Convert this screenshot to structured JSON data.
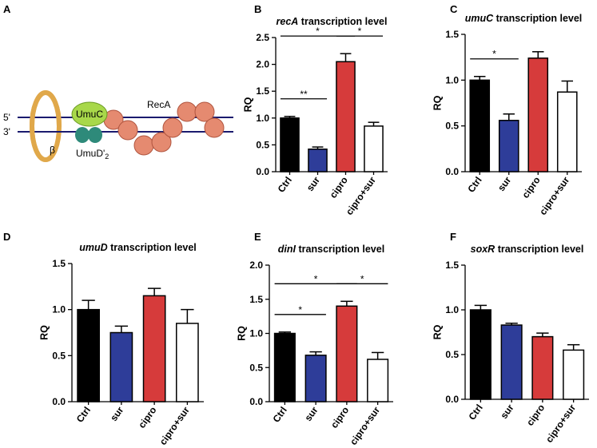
{
  "diagram": {
    "panel_label": "A",
    "strand_5": "5'",
    "strand_3": "3'",
    "umuc": "UmuC",
    "umud": "UmuD'",
    "umud_sub": "2",
    "reca": "RecA",
    "beta": "β"
  },
  "chart_data": [
    {
      "type": "bar",
      "panel_label": "B",
      "title_italic": "recA",
      "title": "transcription level",
      "y_label": "RQ",
      "categories": [
        "Ctrl",
        "sur",
        "cipro",
        "cipro+sur"
      ],
      "values": [
        1.0,
        0.42,
        2.05,
        0.85
      ],
      "errors": [
        0.03,
        0.04,
        0.15,
        0.07
      ],
      "colors": [
        "#000000",
        "#2e3d99",
        "#d63b3b",
        "#ffffff"
      ],
      "ylim": [
        0,
        2.5
      ],
      "yticks": [
        {
          "value": 0,
          "label": "0.0"
        },
        {
          "value": 0.5,
          "label": "0.5"
        },
        {
          "value": 1,
          "label": "1.0"
        },
        {
          "value": 1.5,
          "label": "1.5"
        },
        {
          "value": 2,
          "label": "2.0"
        },
        {
          "value": 2.5,
          "label": "2.5"
        }
      ],
      "annotations": [
        {
          "text": "**",
          "between": [
            "Ctrl",
            "sur"
          ]
        },
        {
          "text": "*",
          "between": [
            "cipro",
            "cipro+sur"
          ]
        },
        {
          "text": "*",
          "between": [
            "Ctrl",
            "cipro"
          ]
        }
      ]
    },
    {
      "type": "bar",
      "panel_label": "C",
      "title_italic": "umuC",
      "title": "transcription level",
      "y_label": "RQ",
      "categories": [
        "Ctrl",
        "sur",
        "cipro",
        "cipro+sur"
      ],
      "values": [
        1.0,
        0.56,
        1.24,
        0.87
      ],
      "errors": [
        0.04,
        0.07,
        0.07,
        0.12
      ],
      "colors": [
        "#000000",
        "#2e3d99",
        "#d63b3b",
        "#ffffff"
      ],
      "ylim": [
        0,
        1.5
      ],
      "yticks": [
        {
          "value": 0,
          "label": "0.0"
        },
        {
          "value": 0.5,
          "label": "0.5"
        },
        {
          "value": 1,
          "label": "1.0"
        },
        {
          "value": 1.5,
          "label": "1.5"
        }
      ],
      "annotations": [
        {
          "text": "*",
          "between": [
            "Ctrl",
            "sur"
          ]
        }
      ]
    },
    {
      "type": "bar",
      "panel_label": "D",
      "title_italic": "umuD",
      "title": "transcription level",
      "y_label": "RQ",
      "categories": [
        "Ctrl",
        "sur",
        "cipro",
        "cipro+sur"
      ],
      "values": [
        1.0,
        0.75,
        1.15,
        0.85
      ],
      "errors": [
        0.1,
        0.07,
        0.08,
        0.15
      ],
      "colors": [
        "#000000",
        "#2e3d99",
        "#d63b3b",
        "#ffffff"
      ],
      "ylim": [
        0,
        1.5
      ],
      "yticks": [
        {
          "value": 0,
          "label": "0.0"
        },
        {
          "value": 0.5,
          "label": "0.5"
        },
        {
          "value": 1,
          "label": "1.0"
        },
        {
          "value": 1.5,
          "label": "1.5"
        }
      ],
      "annotations": []
    },
    {
      "type": "bar",
      "panel_label": "E",
      "title_italic": "dinI",
      "title": "transcription level",
      "y_label": "RQ",
      "categories": [
        "Ctrl",
        "sur",
        "cipro",
        "cipro+sur"
      ],
      "values": [
        1.0,
        0.68,
        1.4,
        0.62
      ],
      "errors": [
        0.02,
        0.05,
        0.07,
        0.1
      ],
      "colors": [
        "#000000",
        "#2e3d99",
        "#d63b3b",
        "#ffffff"
      ],
      "ylim": [
        0,
        2
      ],
      "yticks": [
        {
          "value": 0,
          "label": "0.0"
        },
        {
          "value": 0.5,
          "label": "0.5"
        },
        {
          "value": 1,
          "label": "1.0"
        },
        {
          "value": 1.5,
          "label": "1.5"
        },
        {
          "value": 2,
          "label": "2.0"
        }
      ],
      "annotations": [
        {
          "text": "*",
          "between": [
            "Ctrl",
            "sur"
          ]
        },
        {
          "text": "*",
          "between": [
            "cipro",
            "cipro+sur"
          ]
        },
        {
          "text": "*",
          "between": [
            "Ctrl",
            "cipro"
          ]
        }
      ]
    },
    {
      "type": "bar",
      "panel_label": "F",
      "title_italic": "soxR",
      "title": "transcription level",
      "y_label": "RQ",
      "categories": [
        "Ctrl",
        "sur",
        "cipro",
        "cipro+sur"
      ],
      "values": [
        1.0,
        0.83,
        0.7,
        0.55
      ],
      "errors": [
        0.05,
        0.02,
        0.04,
        0.06
      ],
      "colors": [
        "#000000",
        "#2e3d99",
        "#d63b3b",
        "#ffffff"
      ],
      "ylim": [
        0,
        1.5
      ],
      "yticks": [
        {
          "value": 0,
          "label": "0.0"
        },
        {
          "value": 0.5,
          "label": "0.5"
        },
        {
          "value": 1,
          "label": "1.0"
        },
        {
          "value": 1.5,
          "label": "1.5"
        }
      ],
      "annotations": []
    }
  ]
}
